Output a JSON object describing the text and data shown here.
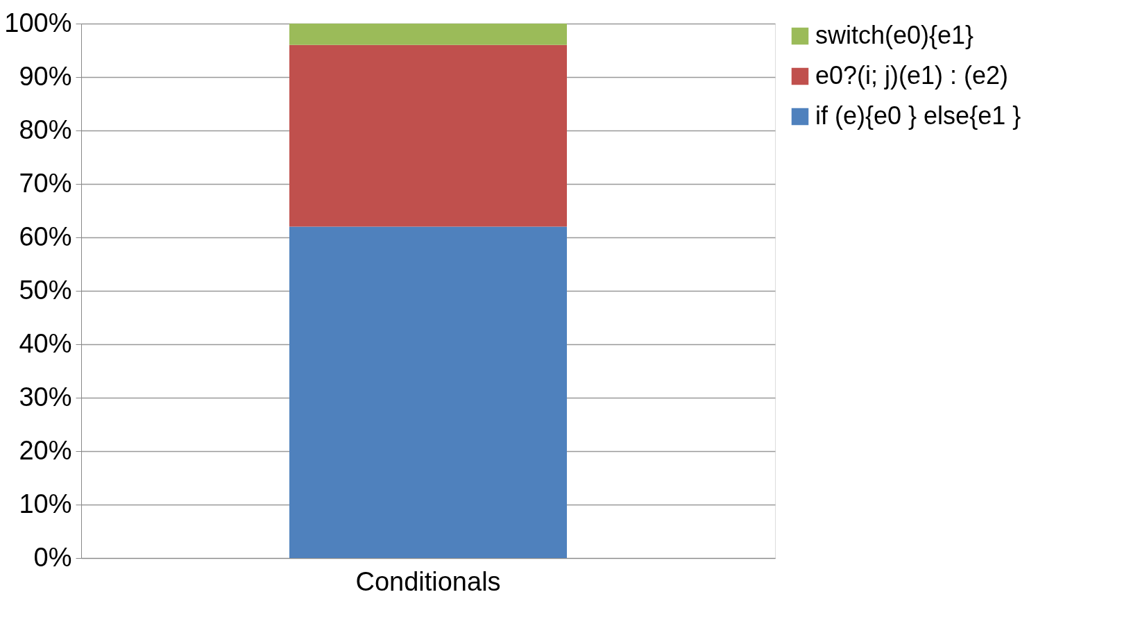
{
  "chart_data": {
    "type": "bar",
    "stacked": true,
    "categories": [
      "Conditionals"
    ],
    "series": [
      {
        "name": "if (e){e0 } else{e1 }",
        "color": "#4f81bd",
        "values": [
          62
        ]
      },
      {
        "name": "e0?(i; j)(e1) : (e2)",
        "color": "#c0504d",
        "values": [
          34
        ]
      },
      {
        "name": "switch(e0){e1}",
        "color": "#9bbb59",
        "values": [
          4
        ]
      }
    ],
    "ylim": [
      0,
      100
    ],
    "yticks": [
      {
        "value": 0,
        "label": "0%"
      },
      {
        "value": 10,
        "label": "10%"
      },
      {
        "value": 20,
        "label": "20%"
      },
      {
        "value": 30,
        "label": "30%"
      },
      {
        "value": 40,
        "label": "40%"
      },
      {
        "value": 50,
        "label": "50%"
      },
      {
        "value": 60,
        "label": "60%"
      },
      {
        "value": 70,
        "label": "70%"
      },
      {
        "value": 80,
        "label": "80%"
      },
      {
        "value": 90,
        "label": "90%"
      },
      {
        "value": 100,
        "label": "100%"
      }
    ],
    "grid": "y",
    "legend": "right"
  }
}
